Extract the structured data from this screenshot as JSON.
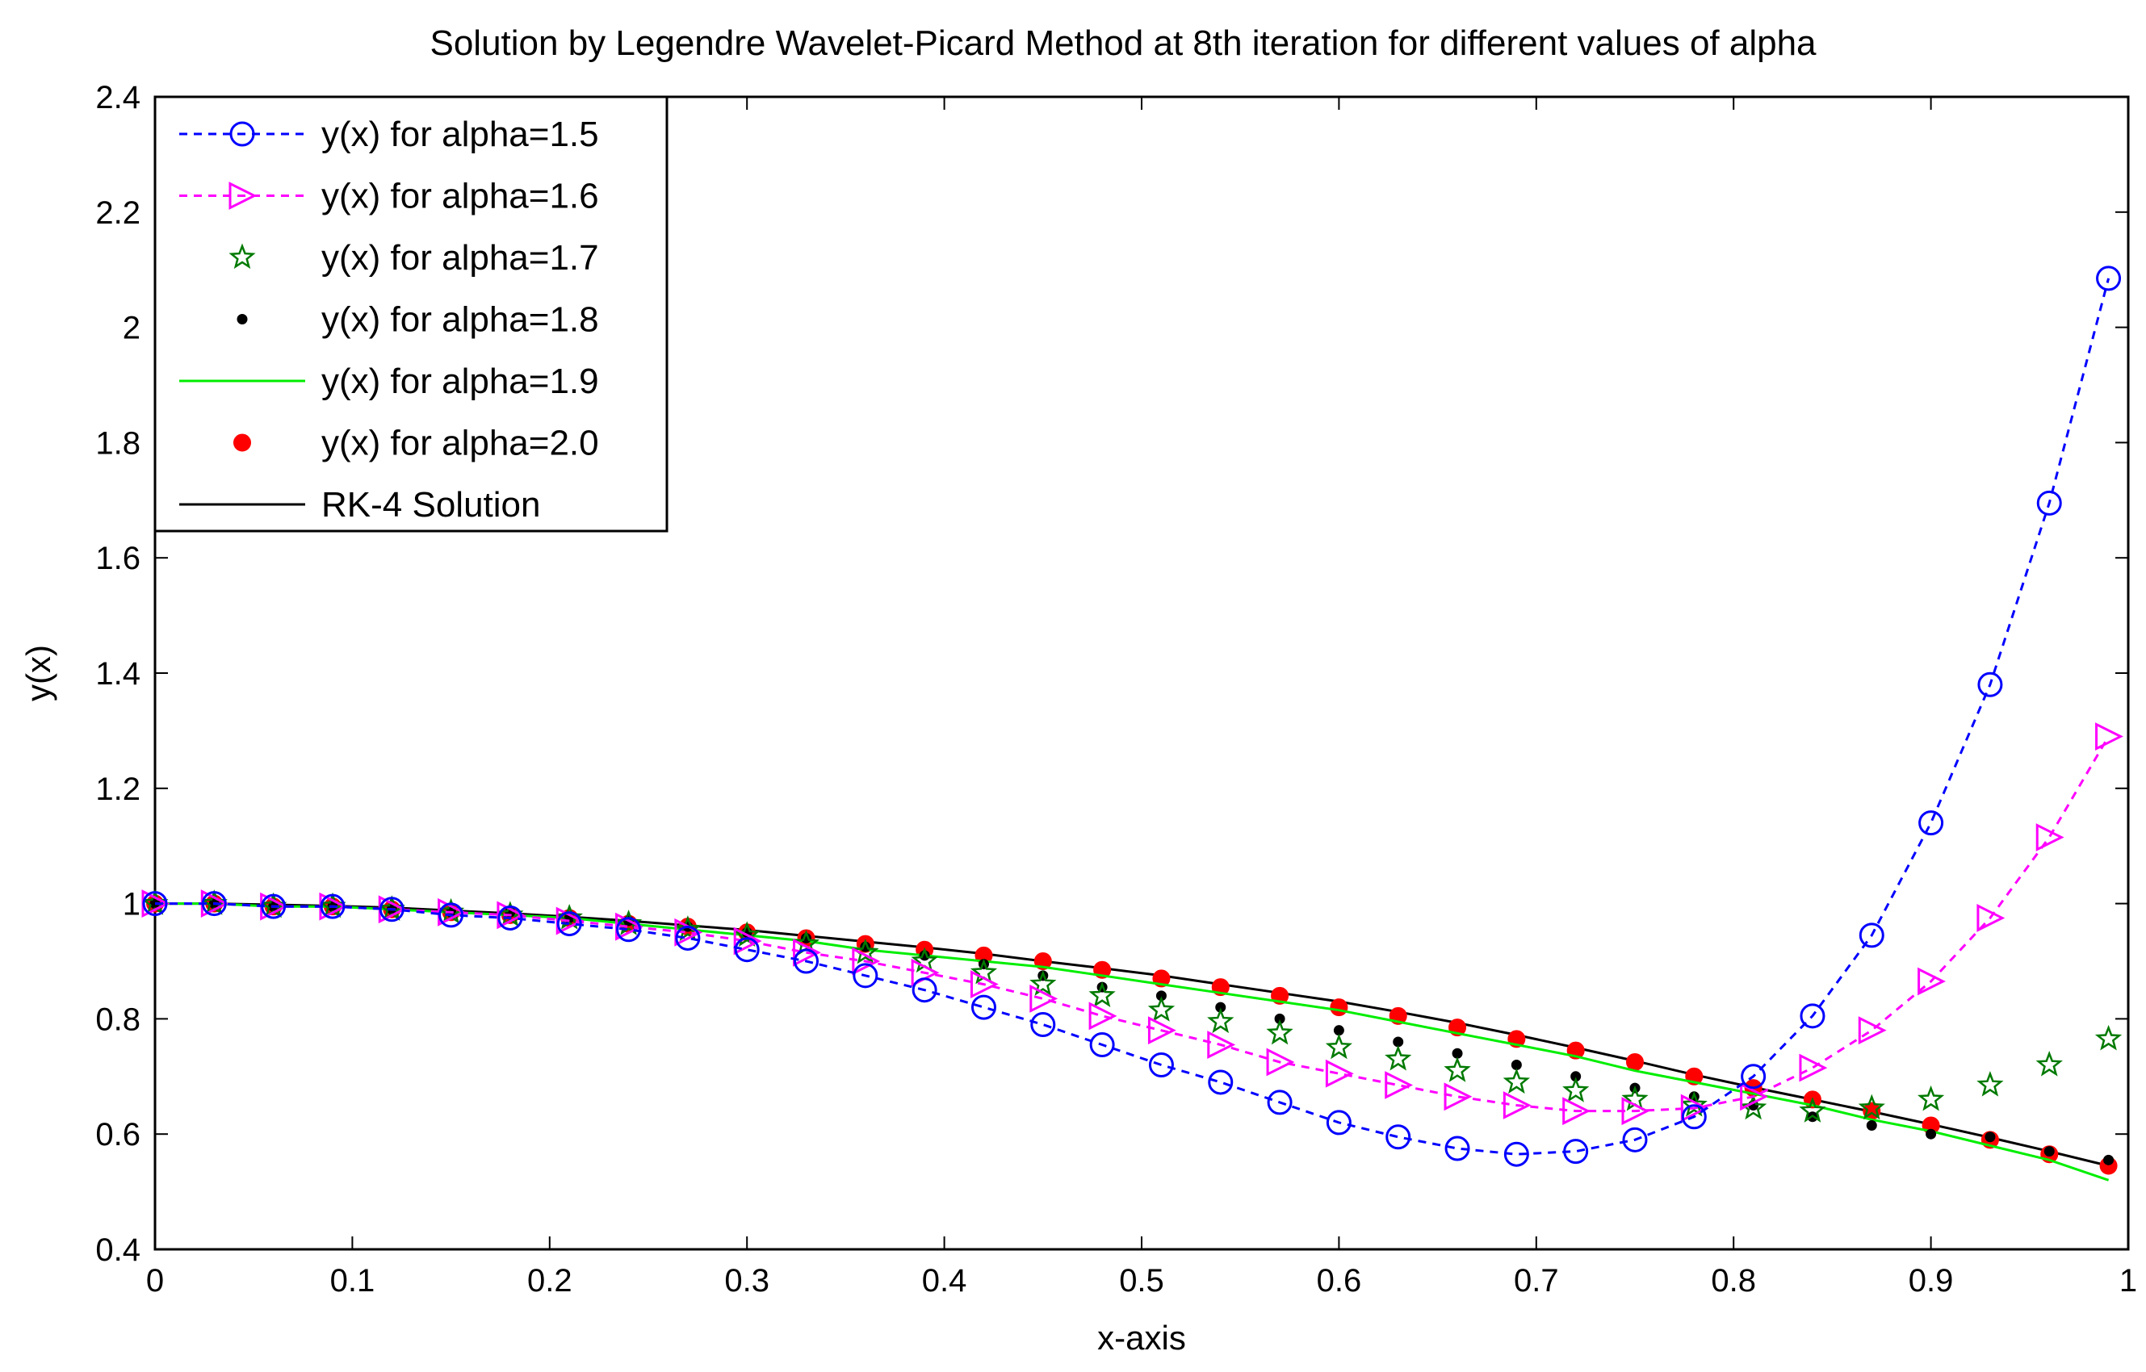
{
  "chart_data": {
    "type": "line",
    "title": "Solution by Legendre Wavelet-Picard Method at 8th iteration for different values of alpha",
    "xlabel": "x-axis",
    "ylabel": "y(x)",
    "xlim": [
      0,
      1
    ],
    "ylim": [
      0.4,
      2.4
    ],
    "xticks": [
      0,
      0.1,
      0.2,
      0.3,
      0.4,
      0.5,
      0.6,
      0.7,
      0.8,
      0.9,
      1
    ],
    "xtick_labels": [
      "0",
      "0.1",
      "0.2",
      "0.3",
      "0.4",
      "0.5",
      "0.6",
      "0.7",
      "0.8",
      "0.9",
      "1"
    ],
    "yticks": [
      0.4,
      0.6,
      0.8,
      1,
      1.2,
      1.4,
      1.6,
      1.8,
      2,
      2.2,
      2.4
    ],
    "ytick_labels": [
      "0.4",
      "0.6",
      "0.8",
      "1",
      "1.2",
      "1.4",
      "1.6",
      "1.8",
      "2",
      "2.2",
      "2.4"
    ],
    "grid": false,
    "legend_position": "top-left",
    "x": [
      0,
      0.03,
      0.06,
      0.09,
      0.12,
      0.15,
      0.18,
      0.21,
      0.24,
      0.27,
      0.3,
      0.33,
      0.36,
      0.39,
      0.42,
      0.45,
      0.48,
      0.51,
      0.54,
      0.57,
      0.6,
      0.63,
      0.66,
      0.69,
      0.72,
      0.75,
      0.78,
      0.81,
      0.84,
      0.87,
      0.9,
      0.93,
      0.96,
      0.99
    ],
    "series": [
      {
        "name": "y(x) for alpha=1.5",
        "color": "#0000ff",
        "line": "dashed",
        "marker": "circle",
        "values": [
          1.0,
          1.0,
          0.995,
          0.995,
          0.99,
          0.98,
          0.975,
          0.965,
          0.955,
          0.94,
          0.92,
          0.9,
          0.875,
          0.85,
          0.82,
          0.79,
          0.755,
          0.72,
          0.69,
          0.655,
          0.62,
          0.595,
          0.575,
          0.565,
          0.57,
          0.59,
          0.63,
          0.7,
          0.805,
          0.945,
          1.14,
          1.38,
          1.695,
          2.085
        ]
      },
      {
        "name": "y(x) for alpha=1.6",
        "color": "#ff00ff",
        "line": "dashed",
        "marker": "triangle-right",
        "values": [
          1.0,
          1.0,
          0.995,
          0.995,
          0.99,
          0.985,
          0.98,
          0.97,
          0.96,
          0.95,
          0.935,
          0.915,
          0.9,
          0.88,
          0.86,
          0.835,
          0.805,
          0.78,
          0.755,
          0.725,
          0.705,
          0.685,
          0.665,
          0.65,
          0.64,
          0.64,
          0.645,
          0.665,
          0.715,
          0.78,
          0.865,
          0.975,
          1.115,
          1.29
        ]
      },
      {
        "name": "y(x) for alpha=1.7",
        "color": "#007a00",
        "line": "none",
        "marker": "star",
        "values": [
          1.0,
          1.0,
          0.995,
          0.995,
          0.99,
          0.985,
          0.98,
          0.975,
          0.965,
          0.955,
          0.945,
          0.93,
          0.915,
          0.9,
          0.88,
          0.86,
          0.84,
          0.815,
          0.795,
          0.775,
          0.75,
          0.73,
          0.71,
          0.69,
          0.675,
          0.66,
          0.65,
          0.645,
          0.64,
          0.645,
          0.66,
          0.685,
          0.72,
          0.765
        ]
      },
      {
        "name": "y(x) for alpha=1.8",
        "color": "#000000",
        "line": "none",
        "marker": "dot",
        "values": [
          1.0,
          1.0,
          0.995,
          0.995,
          0.99,
          0.985,
          0.985,
          0.975,
          0.97,
          0.96,
          0.95,
          0.94,
          0.925,
          0.91,
          0.895,
          0.875,
          0.855,
          0.84,
          0.82,
          0.8,
          0.78,
          0.76,
          0.74,
          0.72,
          0.7,
          0.68,
          0.665,
          0.65,
          0.63,
          0.615,
          0.6,
          0.595,
          0.57,
          0.555
        ]
      },
      {
        "name": "y(x) for alpha=1.9",
        "color": "#00ee00",
        "line": "solid",
        "marker": "none",
        "values": [
          1.0,
          1.0,
          0.995,
          0.995,
          0.99,
          0.985,
          0.98,
          0.975,
          0.965,
          0.955,
          0.945,
          0.935,
          0.92,
          0.91,
          0.9,
          0.89,
          0.875,
          0.86,
          0.845,
          0.83,
          0.815,
          0.795,
          0.775,
          0.755,
          0.735,
          0.71,
          0.69,
          0.67,
          0.65,
          0.625,
          0.605,
          0.58,
          0.555,
          0.52
        ]
      },
      {
        "name": "y(x) for alpha=2.0",
        "color": "#ff0000",
        "line": "none",
        "marker": "filled-dot",
        "values": [
          1.0,
          1.0,
          0.995,
          0.995,
          0.99,
          0.985,
          0.98,
          0.975,
          0.965,
          0.96,
          0.95,
          0.94,
          0.93,
          0.92,
          0.91,
          0.9,
          0.885,
          0.87,
          0.855,
          0.84,
          0.82,
          0.805,
          0.785,
          0.765,
          0.745,
          0.725,
          0.7,
          0.68,
          0.66,
          0.64,
          0.615,
          0.59,
          0.565,
          0.545
        ]
      },
      {
        "name": "RK-4 Solution",
        "color": "#000000",
        "line": "solid",
        "marker": "none",
        "values": [
          1.0,
          1.0,
          0.998,
          0.996,
          0.993,
          0.988,
          0.983,
          0.977,
          0.97,
          0.962,
          0.954,
          0.944,
          0.934,
          0.924,
          0.913,
          0.9,
          0.888,
          0.875,
          0.86,
          0.845,
          0.83,
          0.812,
          0.793,
          0.772,
          0.75,
          0.727,
          0.703,
          0.681,
          0.66,
          0.639,
          0.617,
          0.594,
          0.57,
          0.545
        ]
      }
    ]
  }
}
